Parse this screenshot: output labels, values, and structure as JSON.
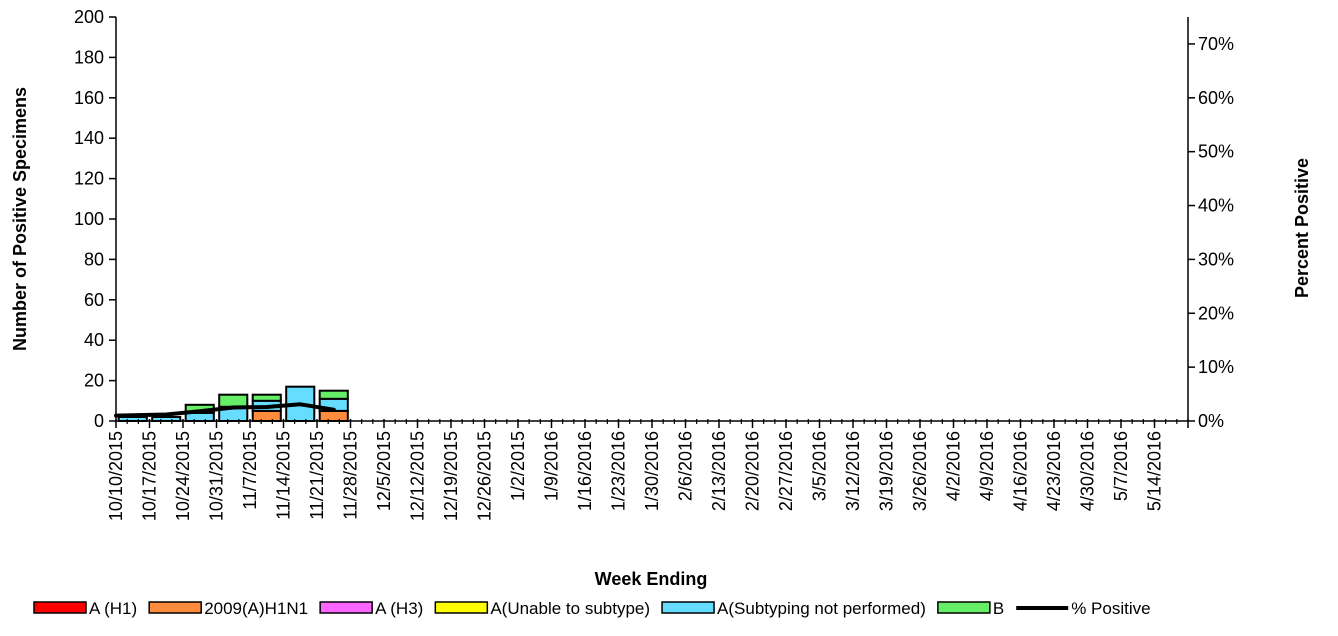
{
  "chart_data": {
    "type": "bar",
    "stacked": true,
    "categories": [
      "10/10/2015",
      "10/17/2015",
      "10/24/2015",
      "10/31/2015",
      "11/7/2015",
      "11/14/2015",
      "11/21/2015",
      "11/28/2015",
      "12/5/2015",
      "12/12/2015",
      "12/19/2015",
      "12/26/2015",
      "1/2/2015",
      "1/9/2016",
      "1/16/2016",
      "1/23/2016",
      "1/30/2016",
      "2/6/2016",
      "2/13/2016",
      "2/20/2016",
      "2/27/2016",
      "3/5/2016",
      "3/12/2016",
      "3/19/2016",
      "3/26/2016",
      "4/2/2016",
      "4/9/2016",
      "4/16/2016",
      "4/23/2016",
      "4/30/2016",
      "5/7/2016",
      "5/14/2016"
    ],
    "series": [
      {
        "name": "A (H1)",
        "color": "#ff0000",
        "values": [
          0,
          0,
          0,
          0,
          0,
          0,
          0,
          0,
          0,
          0,
          0,
          0,
          0,
          0,
          0,
          0,
          0,
          0,
          0,
          0,
          0,
          0,
          0,
          0,
          0,
          0,
          0,
          0,
          0,
          0,
          0,
          0
        ]
      },
      {
        "name": "2009(A)H1N1",
        "color": "#ff8c3c",
        "values": [
          0,
          0,
          0,
          0,
          5,
          0,
          5,
          0,
          0,
          0,
          0,
          0,
          0,
          0,
          0,
          0,
          0,
          0,
          0,
          0,
          0,
          0,
          0,
          0,
          0,
          0,
          0,
          0,
          0,
          0,
          0,
          0
        ]
      },
      {
        "name": "A (H3)",
        "color": "#ff66ff",
        "values": [
          0,
          0,
          0,
          0,
          0,
          0,
          0,
          0,
          0,
          0,
          0,
          0,
          0,
          0,
          0,
          0,
          0,
          0,
          0,
          0,
          0,
          0,
          0,
          0,
          0,
          0,
          0,
          0,
          0,
          0,
          0,
          0
        ]
      },
      {
        "name": "A(Unable to subtype)",
        "color": "#ffff00",
        "values": [
          0,
          0,
          0,
          0,
          0,
          0,
          0,
          0,
          0,
          0,
          0,
          0,
          0,
          0,
          0,
          0,
          0,
          0,
          0,
          0,
          0,
          0,
          0,
          0,
          0,
          0,
          0,
          0,
          0,
          0,
          0,
          0
        ]
      },
      {
        "name": "A(Subtyping not performed)",
        "color": "#66ddff",
        "values": [
          2,
          2,
          4,
          7,
          5,
          17,
          6,
          0,
          0,
          0,
          0,
          0,
          0,
          0,
          0,
          0,
          0,
          0,
          0,
          0,
          0,
          0,
          0,
          0,
          0,
          0,
          0,
          0,
          0,
          0,
          0,
          0
        ]
      },
      {
        "name": "B",
        "color": "#66ee66",
        "values": [
          0,
          0,
          4,
          6,
          3,
          0,
          4,
          0,
          0,
          0,
          0,
          0,
          0,
          0,
          0,
          0,
          0,
          0,
          0,
          0,
          0,
          0,
          0,
          0,
          0,
          0,
          0,
          0,
          0,
          0,
          0,
          0
        ]
      }
    ],
    "line_series": {
      "name": "% Positive",
      "color": "#000000",
      "values": [
        1.0,
        1.2,
        1.8,
        2.5,
        2.6,
        3.1,
        2.1
      ]
    },
    "xlabel": "Week Ending",
    "ylabel": "Number of  Positive Specimens",
    "y2label": "Percent Positive",
    "ylim": [
      0,
      200
    ],
    "y_ticks": [
      0,
      20,
      40,
      60,
      80,
      100,
      120,
      140,
      160,
      180,
      200
    ],
    "y2lim": [
      0,
      75
    ],
    "y2_ticks": [
      "0%",
      "10%",
      "20%",
      "30%",
      "40%",
      "50%",
      "60%",
      "70%"
    ],
    "legend_position": "bottom"
  }
}
